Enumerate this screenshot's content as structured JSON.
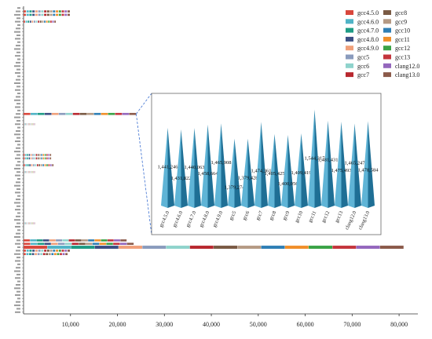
{
  "chart_data": {
    "type": "bar",
    "orientation": "horizontal",
    "stacked": true,
    "grid": false,
    "legend": "top-right",
    "xlim": [
      0,
      84000
    ],
    "x_ticks": [
      "10,000",
      "20,000",
      "30,000",
      "40,000",
      "50,000",
      "60,000",
      "70,000",
      "80,000"
    ],
    "x_tick_values": [
      10000,
      20000,
      30000,
      40000,
      50000,
      60000,
      70000,
      80000
    ],
    "series": [
      {
        "name": "gcc4.5.0",
        "color": "#d8473c"
      },
      {
        "name": "gcc4.6.0",
        "color": "#4fb3c6"
      },
      {
        "name": "gcc4.7.0",
        "color": "#1f9c85"
      },
      {
        "name": "gcc4.8.0",
        "color": "#3c4f84"
      },
      {
        "name": "gcc4.9.0",
        "color": "#f0a07a"
      },
      {
        "name": "gcc5",
        "color": "#8a9bbd"
      },
      {
        "name": "gcc6",
        "color": "#8fd3cc"
      },
      {
        "name": "gcc7",
        "color": "#b8282f"
      },
      {
        "name": "gcc8",
        "color": "#7a5a44"
      },
      {
        "name": "gcc9",
        "color": "#b59a84"
      },
      {
        "name": "gcc10",
        "color": "#2f7fb5"
      },
      {
        "name": "gcc11",
        "color": "#f08f2a"
      },
      {
        "name": "gcc12",
        "color": "#3aa346"
      },
      {
        "name": "gcc13",
        "color": "#c4353c"
      },
      {
        "name": "clang12.0",
        "color": "#9467bd"
      },
      {
        "name": "clang13.0",
        "color": "#8b5a4a"
      }
    ],
    "main_bars": [
      {
        "row": 1,
        "total": 10000
      },
      {
        "row": 2,
        "total": 10000
      },
      {
        "row": 4,
        "total": 7000
      },
      {
        "row": 31,
        "total": 24000
      },
      {
        "row": 34,
        "total": 2500
      },
      {
        "row": 43,
        "total": 6000
      },
      {
        "row": 44,
        "total": 6000
      },
      {
        "row": 46,
        "total": 6500
      },
      {
        "row": 48,
        "total": 2500
      },
      {
        "row": 63,
        "total": 2500
      },
      {
        "row": 68,
        "total": 22000
      },
      {
        "row": 69,
        "total": 23500
      },
      {
        "row": 70,
        "total": 81000
      },
      {
        "row": 71,
        "total": 10000
      },
      {
        "row": 72,
        "total": 9500
      }
    ],
    "inset": {
      "type": "bar",
      "categories": [
        "gcc4.5.0",
        "gcc4.6.0",
        "gcc4.7.0",
        "gcc4.8.0",
        "gcc4.9.0",
        "gcc5",
        "gcc6",
        "gcc7",
        "gcc8",
        "gcc9",
        "gcc10",
        "gcc11",
        "gcc12",
        "gcc13",
        "clang12.0",
        "clang13.0"
      ],
      "values": [
        1441246,
        1431822,
        1440063,
        1458664,
        1465908,
        1379274,
        1379428,
        1474361,
        1405425,
        1400056,
        1409419,
        1544317,
        1481431,
        1475493,
        1465247,
        1478584
      ],
      "labels": [
        "1,441,246",
        "1,431,822",
        "1,440,063",
        "1,458,664",
        "1,465,908",
        "1,379,274",
        "1,379,428",
        "1,474,361",
        "1,405,425",
        "1,400,056",
        "1,409,419",
        "1,544,317",
        "1,481,431",
        "1,475,493",
        "1,465,247",
        "1,478,584"
      ],
      "color": "#2b8bb5"
    }
  }
}
